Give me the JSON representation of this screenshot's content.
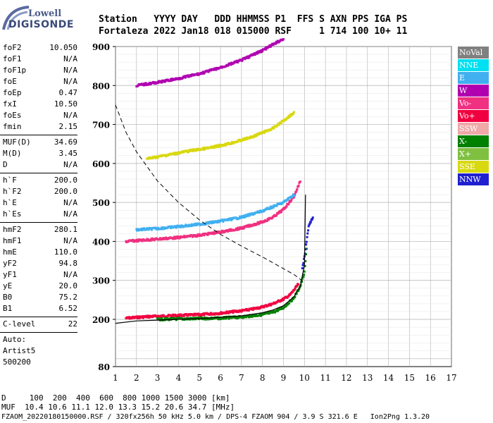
{
  "logo": {
    "line1": "Lowell",
    "line2": "DIGISONDE"
  },
  "header": {
    "line1": "Station   YYYY DAY   DDD HHMMSS P1  FFS S AXN PPS IGA PS",
    "line2": "Fortaleza 2022 Jan18 018 015000 RSF     1 714 100 10+ 11"
  },
  "params_group1": [
    {
      "label": "foF2",
      "value": "10.050"
    },
    {
      "label": "foF1",
      "value": "N/A"
    },
    {
      "label": "foF1p",
      "value": "N/A"
    },
    {
      "label": "foE",
      "value": "N/A"
    },
    {
      "label": "foEp",
      "value": "0.47"
    },
    {
      "label": "fxI",
      "value": "10.50"
    },
    {
      "label": "foEs",
      "value": "N/A"
    },
    {
      "label": "fmin",
      "value": "2.15"
    }
  ],
  "params_group2": [
    {
      "label": "MUF(D)",
      "value": "34.69"
    },
    {
      "label": "M(D)",
      "value": "3.45"
    },
    {
      "label": "D",
      "value": "N/A"
    }
  ],
  "params_group3": [
    {
      "label": "h`F",
      "value": "200.0"
    },
    {
      "label": "h`F2",
      "value": "200.0"
    },
    {
      "label": "h`E",
      "value": "N/A"
    },
    {
      "label": "h`Es",
      "value": "N/A"
    }
  ],
  "params_group4": [
    {
      "label": "hmF2",
      "value": "280.1"
    },
    {
      "label": "hmF1",
      "value": "N/A"
    },
    {
      "label": "hmE",
      "value": "110.0"
    },
    {
      "label": "yF2",
      "value": "94.8"
    },
    {
      "label": "yF1",
      "value": "N/A"
    },
    {
      "label": "yE",
      "value": "20.0"
    },
    {
      "label": "B0",
      "value": "75.2"
    },
    {
      "label": "B1",
      "value": "6.52"
    }
  ],
  "c_level": {
    "label": "C-level",
    "value": "22"
  },
  "auto": {
    "line1": "Auto:",
    "line2": "Artist5",
    "line3": "500200"
  },
  "bottom": {
    "line1": "D     100  200  400  600  800 1000 1500 3000 [km]",
    "line2": "MUF  10.4 10.6 11.1 12.0 13.3 15.2 20.6 34.7 [MHz]",
    "line3": "FZAOM_20220180150000.RSF / 320fx256h 50 kHz 5.0 km / DPS-4 FZAOM 904 / 3.9 S 321.6 E   Ion2Png 1.3.20"
  },
  "legend": [
    {
      "label": "NoVal",
      "color": "#808080"
    },
    {
      "label": "NNE",
      "color": "#00e0f0"
    },
    {
      "label": "E",
      "color": "#40b0f0"
    },
    {
      "label": "W",
      "color": "#b000b0"
    },
    {
      "label": "Vo-",
      "color": "#f03080"
    },
    {
      "label": "Vo+",
      "color": "#f00040"
    },
    {
      "label": "SSW",
      "color": "#f0a8a8"
    },
    {
      "label": "X-",
      "color": "#008000"
    },
    {
      "label": "X+",
      "color": "#80c040"
    },
    {
      "label": "SSE",
      "color": "#d8d810"
    },
    {
      "label": "NNW",
      "color": "#2020d0"
    }
  ],
  "chart_data": {
    "type": "scatter",
    "xlim": [
      1,
      17
    ],
    "ylim": [
      80,
      900
    ],
    "x_ticks": [
      1,
      2,
      3,
      4,
      5,
      6,
      7,
      8,
      9,
      10,
      11,
      12,
      13,
      14,
      15,
      16,
      17
    ],
    "y_ticks": [
      80,
      200,
      300,
      400,
      500,
      600,
      700,
      800,
      900
    ],
    "grid": true,
    "series": [
      {
        "name": "Vo+",
        "color": "#f00040",
        "x": [
          1.5,
          2,
          2.5,
          3,
          3.5,
          4,
          4.5,
          5,
          5.5,
          6,
          6.5,
          7,
          7.5,
          8,
          8.5,
          9,
          9.3,
          9.5,
          9.7
        ],
        "y": [
          203,
          205,
          207,
          208,
          209,
          210,
          211,
          212,
          214,
          216,
          219,
          222,
          226,
          232,
          240,
          252,
          262,
          275,
          290
        ]
      },
      {
        "name": "X-",
        "color": "#008000",
        "x": [
          3,
          4,
          5,
          6,
          7,
          8,
          8.5,
          9,
          9.5,
          9.8,
          10,
          10.1
        ],
        "y": [
          200,
          201,
          202,
          203,
          206,
          212,
          218,
          230,
          255,
          285,
          320,
          380
        ]
      },
      {
        "name": "Vo-",
        "color": "#f03080",
        "x": [
          1.5,
          2,
          3,
          4,
          5,
          6,
          7,
          8,
          8.5,
          9,
          9.5,
          9.8
        ],
        "y": [
          400,
          402,
          406,
          410,
          416,
          424,
          434,
          450,
          462,
          482,
          515,
          555
        ]
      },
      {
        "name": "E",
        "color": "#40b0f0",
        "x": [
          2,
          3,
          4,
          5,
          6,
          7,
          8,
          9,
          9.5
        ],
        "y": [
          430,
          433,
          438,
          444,
          452,
          462,
          478,
          500,
          520
        ]
      },
      {
        "name": "SSE",
        "color": "#d8d810",
        "x": [
          2.5,
          3.5,
          4.5,
          5.5,
          6.5,
          7.5,
          8.5,
          9,
          9.5
        ],
        "y": [
          612,
          622,
          632,
          640,
          652,
          668,
          690,
          710,
          730
        ]
      },
      {
        "name": "W",
        "color": "#b000b0",
        "x": [
          2,
          3,
          4,
          5,
          6,
          7,
          8,
          8.5,
          9
        ],
        "y": [
          800,
          808,
          818,
          830,
          846,
          865,
          890,
          905,
          920
        ]
      },
      {
        "name": "NNW",
        "color": "#2020d0",
        "x": [
          9.9,
          10,
          10.1,
          10.2,
          10.4
        ],
        "y": [
          330,
          360,
          400,
          440,
          460
        ]
      }
    ],
    "fitted_curve": {
      "x": [
        1,
        2,
        3,
        4,
        5,
        6,
        7,
        8,
        8.5,
        9,
        9.5,
        9.8,
        10,
        10.05
      ],
      "y": [
        190,
        196,
        198,
        200,
        202,
        205,
        209,
        217,
        224,
        235,
        258,
        285,
        340,
        520
      ]
    },
    "muf_curve": {
      "x": [
        1,
        1.5,
        2,
        3,
        4,
        5,
        6,
        7,
        8,
        9,
        9.5,
        10
      ],
      "y": [
        750,
        680,
        630,
        555,
        500,
        455,
        418,
        388,
        360,
        330,
        315,
        295
      ]
    }
  }
}
